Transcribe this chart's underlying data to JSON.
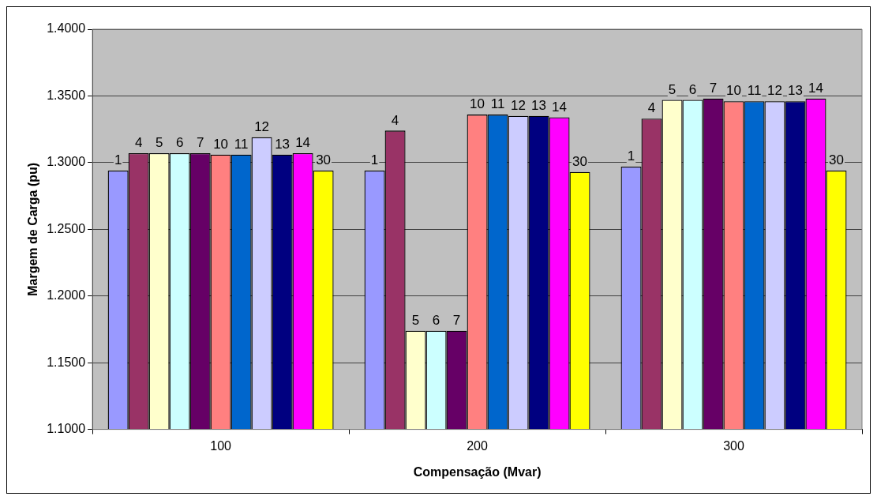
{
  "chart_data": {
    "type": "bar",
    "xlabel": "Compensação (Mvar)",
    "ylabel": "Margem de Carga (pu)",
    "categories": [
      "100",
      "200",
      "300"
    ],
    "series": [
      {
        "name": "1",
        "color": "#9999ff",
        "values": [
          1.294,
          1.294,
          1.297
        ]
      },
      {
        "name": "4",
        "color": "#993366",
        "values": [
          1.307,
          1.324,
          1.333
        ]
      },
      {
        "name": "5",
        "color": "#ffffcc",
        "values": [
          1.307,
          1.174,
          1.347
        ]
      },
      {
        "name": "6",
        "color": "#ccffff",
        "values": [
          1.307,
          1.174,
          1.347
        ]
      },
      {
        "name": "7",
        "color": "#660066",
        "values": [
          1.307,
          1.174,
          1.348
        ]
      },
      {
        "name": "10",
        "color": "#ff8080",
        "values": [
          1.306,
          1.336,
          1.346
        ]
      },
      {
        "name": "11",
        "color": "#0066cc",
        "values": [
          1.306,
          1.336,
          1.346
        ]
      },
      {
        "name": "12",
        "color": "#ccccff",
        "values": [
          1.319,
          1.335,
          1.346
        ]
      },
      {
        "name": "13",
        "color": "#000080",
        "values": [
          1.306,
          1.335,
          1.346
        ]
      },
      {
        "name": "14",
        "color": "#ff00ff",
        "values": [
          1.307,
          1.334,
          1.348
        ]
      },
      {
        "name": "30",
        "color": "#ffff00",
        "values": [
          1.294,
          1.293,
          1.294
        ]
      }
    ],
    "ylim": [
      1.1,
      1.4
    ],
    "yticks": [
      {
        "value": 1.1,
        "label": "1.1000"
      },
      {
        "value": 1.15,
        "label": "1.1500"
      },
      {
        "value": 1.2,
        "label": "1.2000"
      },
      {
        "value": 1.25,
        "label": "1.2500"
      },
      {
        "value": 1.3,
        "label": "1.3000"
      },
      {
        "value": 1.35,
        "label": "1.3500"
      },
      {
        "value": 1.4,
        "label": "1.4000"
      }
    ],
    "grid": "y",
    "legend": false
  }
}
